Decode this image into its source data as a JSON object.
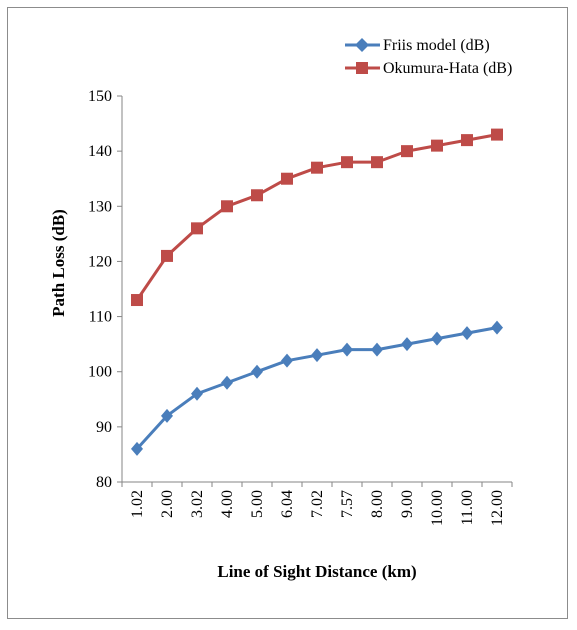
{
  "chart_data": {
    "type": "line",
    "title": "",
    "xlabel": "Line of Sight Distance (km)",
    "ylabel": "Path Loss (dB)",
    "categories": [
      "1.02",
      "2.00",
      "3.02",
      "4.00",
      "5.00",
      "6.04",
      "7.02",
      "7.57",
      "8.00",
      "9.00",
      "10.00",
      "11.00",
      "12.00"
    ],
    "ylim": [
      80,
      150
    ],
    "yticks": [
      "80",
      "90",
      "100",
      "110",
      "120",
      "130",
      "140",
      "150"
    ],
    "legend_position": "top-right",
    "grid": false,
    "series": [
      {
        "name": "Friis model (dB)",
        "color": "#4a7ebb",
        "marker": "diamond",
        "values": [
          86,
          92,
          96,
          98,
          100,
          102,
          103,
          104,
          104,
          105,
          106,
          107,
          108
        ]
      },
      {
        "name": "Okumura-Hata (dB)",
        "color": "#be4b48",
        "marker": "square",
        "values": [
          113,
          121,
          126,
          130,
          132,
          135,
          137,
          138,
          138,
          140,
          141,
          142,
          143
        ]
      }
    ]
  }
}
